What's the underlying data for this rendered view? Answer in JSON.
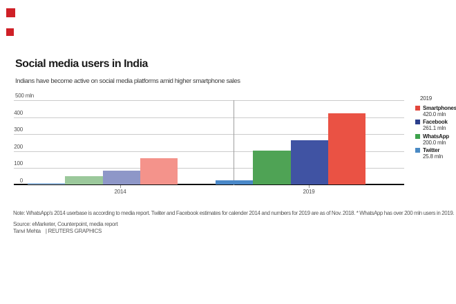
{
  "page": {
    "background": "#ffffff"
  },
  "brand_marks": {
    "color": "#cf2027"
  },
  "header": {
    "title": "Social media users in India",
    "subtitle": "Indians have become active on social media platforms amid higher smartphone sales"
  },
  "chart_data": {
    "type": "bar",
    "title": "Social media users in India",
    "unit": "mln",
    "categories": [
      "2014",
      "2019"
    ],
    "series": [
      {
        "name": "Twitter",
        "values": [
          8,
          25.8
        ],
        "colors": [
          "#9cbfe2",
          "#4a88c8"
        ]
      },
      {
        "name": "WhatsApp",
        "values": [
          50,
          200
        ],
        "colors": [
          "#9bc89b",
          "#4fa355"
        ]
      },
      {
        "name": "Facebook",
        "values": [
          82,
          261.1
        ],
        "colors": [
          "#8e97c8",
          "#4053a3"
        ]
      },
      {
        "name": "Smartphones",
        "values": [
          155,
          420
        ],
        "colors": [
          "#f4938b",
          "#ea5244"
        ]
      }
    ],
    "y_axis": {
      "ticks": [
        0,
        100,
        200,
        300,
        400,
        500
      ],
      "top_label": "500 mln",
      "min": 0,
      "max": 500,
      "grid": true
    },
    "legend": {
      "header": "2019",
      "position": "right",
      "items": [
        {
          "label": "Smartphones",
          "value": "420.0 mln",
          "color": "#e2473c"
        },
        {
          "label": "Facebook",
          "value": "261.1 mln",
          "color": "#2c3f8c"
        },
        {
          "label": "WhatsApp",
          "value": "200.0 mln",
          "color": "#3da24c"
        },
        {
          "label": "Twitter",
          "value": "25.8 mln",
          "color": "#4a8ac4"
        }
      ]
    }
  },
  "footer": {
    "note": "Note: WhatsApp's 2014 userbase is according to media report. Twiiter and Facebook estimates for calender 2014 and numbers for 2019 are as of Nov. 2018. * WhatsApp has over 200 mln users in 2019.",
    "source": "Source: eMarketer, Counterpoint, media report",
    "byline": "Tanvi Mehta",
    "credit": "| REUTERS GRAPHICS"
  }
}
